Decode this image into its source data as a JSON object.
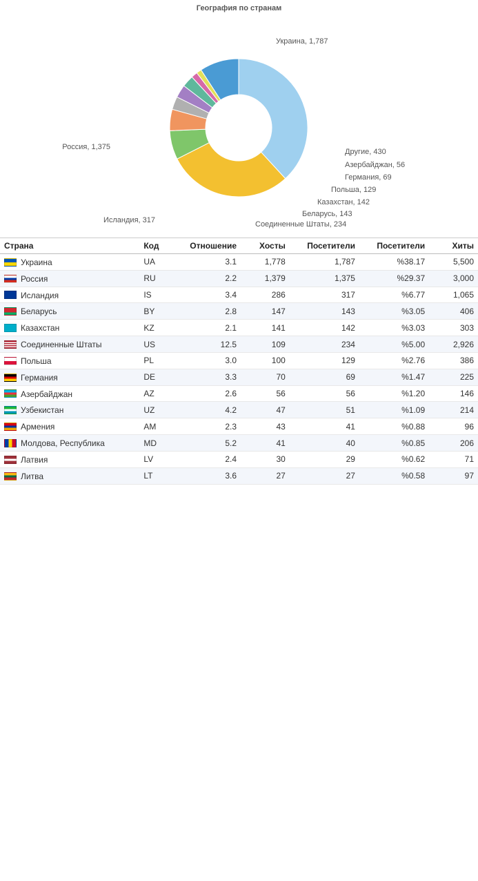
{
  "chart": {
    "title": "География по странам",
    "title_fontsize": 11,
    "background_color": "#ffffff",
    "donut": {
      "type": "pie",
      "inner_radius_ratio": 0.48,
      "outer_radius": 100,
      "center_offset_y": 0,
      "stroke": "#ffffff",
      "stroke_width": 1,
      "label_fontsize": 11,
      "label_color": "#555555",
      "slices": [
        {
          "label": "Украина",
          "value": 1787,
          "display": "Украина, 1,787",
          "color": "#9fd0ef"
        },
        {
          "label": "Россия",
          "value": 1375,
          "display": "Россия, 1,375",
          "color": "#f3c030"
        },
        {
          "label": "Исландия",
          "value": 317,
          "display": "Исландия, 317",
          "color": "#7fc66a"
        },
        {
          "label": "Соединенные Штаты",
          "value": 234,
          "display": "Соединенные Штаты, 234",
          "color": "#f0955f"
        },
        {
          "label": "Беларусь",
          "value": 143,
          "display": "Беларусь, 143",
          "color": "#b0b0b0"
        },
        {
          "label": "Казахстан",
          "value": 142,
          "display": "Казахстан, 142",
          "color": "#a37fc4"
        },
        {
          "label": "Польша",
          "value": 129,
          "display": "Польша, 129",
          "color": "#5fb89c"
        },
        {
          "label": "Германия",
          "value": 69,
          "display": "Германия, 69",
          "color": "#d66aa8"
        },
        {
          "label": "Азербайджан",
          "value": 56,
          "display": "Азербайджан, 56",
          "color": "#e2e05a"
        },
        {
          "label": "Другие",
          "value": 430,
          "display": "Другие, 430",
          "color": "#4a9bd4"
        }
      ]
    }
  },
  "table": {
    "columns": [
      "Страна",
      "Код",
      "Отношение",
      "Хосты",
      "Посетители",
      "Посетители",
      "Хиты"
    ],
    "rows": [
      {
        "country": "Украина",
        "code": "UA",
        "rel": "3.1",
        "hosts": "1,778",
        "visitors": "1,787",
        "vpct": "%38.17",
        "hits": "5,500",
        "flag_colors": [
          "#0057b7",
          "#ffd700"
        ],
        "flag_dir": "h"
      },
      {
        "country": "Россия",
        "code": "RU",
        "rel": "2.2",
        "hosts": "1,379",
        "visitors": "1,375",
        "vpct": "%29.37",
        "hits": "3,000",
        "flag_colors": [
          "#ffffff",
          "#0039a6",
          "#d52b1e"
        ],
        "flag_dir": "h"
      },
      {
        "country": "Исландия",
        "code": "IS",
        "rel": "3.4",
        "hosts": "286",
        "visitors": "317",
        "vpct": "%6.77",
        "hits": "1,065",
        "flag_colors": [
          "#003897",
          "#ffffff",
          "#d72828"
        ],
        "flag_dir": "cross"
      },
      {
        "country": "Беларусь",
        "code": "BY",
        "rel": "2.8",
        "hosts": "147",
        "visitors": "143",
        "vpct": "%3.05",
        "hits": "406",
        "flag_colors": [
          "#d22730",
          "#00af66"
        ],
        "flag_dir": "h23"
      },
      {
        "country": "Казахстан",
        "code": "KZ",
        "rel": "2.1",
        "hosts": "141",
        "visitors": "142",
        "vpct": "%3.03",
        "hits": "303",
        "flag_colors": [
          "#00afca",
          "#fec50c"
        ],
        "flag_dir": "solid"
      },
      {
        "country": "Соединенные Штаты",
        "code": "US",
        "rel": "12.5",
        "hosts": "109",
        "visitors": "234",
        "vpct": "%5.00",
        "hits": "2,926",
        "flag_colors": [
          "#b22234",
          "#ffffff",
          "#3c3b6e"
        ],
        "flag_dir": "us"
      },
      {
        "country": "Польша",
        "code": "PL",
        "rel": "3.0",
        "hosts": "100",
        "visitors": "129",
        "vpct": "%2.76",
        "hits": "386",
        "flag_colors": [
          "#ffffff",
          "#dc143c"
        ],
        "flag_dir": "h"
      },
      {
        "country": "Германия",
        "code": "DE",
        "rel": "3.3",
        "hosts": "70",
        "visitors": "69",
        "vpct": "%1.47",
        "hits": "225",
        "flag_colors": [
          "#000000",
          "#dd0000",
          "#ffce00"
        ],
        "flag_dir": "h"
      },
      {
        "country": "Азербайджан",
        "code": "AZ",
        "rel": "2.6",
        "hosts": "56",
        "visitors": "56",
        "vpct": "%1.20",
        "hits": "146",
        "flag_colors": [
          "#00b5e2",
          "#ef3340",
          "#509e2f"
        ],
        "flag_dir": "h"
      },
      {
        "country": "Узбекистан",
        "code": "UZ",
        "rel": "4.2",
        "hosts": "47",
        "visitors": "51",
        "vpct": "%1.09",
        "hits": "214",
        "flag_colors": [
          "#1eb53a",
          "#ffffff",
          "#0099b5"
        ],
        "flag_dir": "h"
      },
      {
        "country": "Армения",
        "code": "AM",
        "rel": "2.3",
        "hosts": "43",
        "visitors": "41",
        "vpct": "%0.88",
        "hits": "96",
        "flag_colors": [
          "#d90012",
          "#0033a0",
          "#f2a800"
        ],
        "flag_dir": "h"
      },
      {
        "country": "Молдова, Республика",
        "code": "MD",
        "rel": "5.2",
        "hosts": "41",
        "visitors": "40",
        "vpct": "%0.85",
        "hits": "206",
        "flag_colors": [
          "#003da5",
          "#ffd200",
          "#cc092f"
        ],
        "flag_dir": "v"
      },
      {
        "country": "Латвия",
        "code": "LV",
        "rel": "2.4",
        "hosts": "30",
        "visitors": "29",
        "vpct": "%0.62",
        "hits": "71",
        "flag_colors": [
          "#9e3039",
          "#ffffff",
          "#9e3039"
        ],
        "flag_dir": "h"
      },
      {
        "country": "Литва",
        "code": "LT",
        "rel": "3.6",
        "hosts": "27",
        "visitors": "27",
        "vpct": "%0.58",
        "hits": "97",
        "flag_colors": [
          "#fdb913",
          "#006a44",
          "#c1272d"
        ],
        "flag_dir": "h"
      }
    ]
  }
}
